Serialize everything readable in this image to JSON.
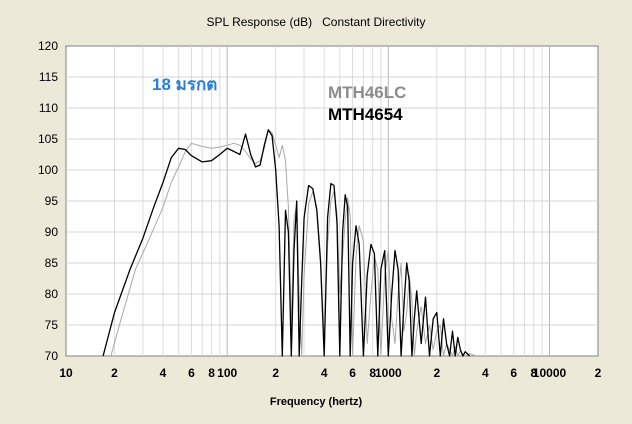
{
  "chart_data": {
    "type": "line",
    "title": "SPL Response (dB)   Constant Directivity",
    "xlabel": "Frequency (hertz)",
    "ylabel": "",
    "x_scale": "log",
    "xlim": [
      10,
      20000
    ],
    "ylim": [
      70,
      120
    ],
    "grid": true,
    "x_ticks": [
      {
        "value": 10,
        "label": "10"
      },
      {
        "value": 20,
        "label": "2"
      },
      {
        "value": 40,
        "label": "4"
      },
      {
        "value": 60,
        "label": "6"
      },
      {
        "value": 80,
        "label": "8"
      },
      {
        "value": 100,
        "label": "100"
      },
      {
        "value": 200,
        "label": "2"
      },
      {
        "value": 400,
        "label": "4"
      },
      {
        "value": 600,
        "label": "6"
      },
      {
        "value": 800,
        "label": "8"
      },
      {
        "value": 1000,
        "label": "1000"
      },
      {
        "value": 2000,
        "label": "2"
      },
      {
        "value": 4000,
        "label": "4"
      },
      {
        "value": 6000,
        "label": "6"
      },
      {
        "value": 8000,
        "label": "8"
      },
      {
        "value": 10000,
        "label": "10000"
      },
      {
        "value": 20000,
        "label": "2"
      }
    ],
    "y_ticks": [
      70,
      75,
      80,
      85,
      90,
      95,
      100,
      105,
      110,
      115,
      120
    ],
    "annotations": [
      {
        "text": "18 มรกต",
        "color": "#2a7fd8"
      },
      {
        "text": "MTH46LC",
        "color": "#8c8c8c"
      },
      {
        "text": "MTH4654",
        "color": "#000000"
      }
    ],
    "series": [
      {
        "name": "MTH4654",
        "color": "#000000",
        "x": [
          17,
          20,
          25,
          30,
          35,
          40,
          45,
          50,
          55,
          60,
          70,
          80,
          90,
          100,
          110,
          120,
          130,
          140,
          150,
          160,
          170,
          180,
          190,
          200,
          210,
          220,
          230,
          240,
          250,
          260,
          270,
          280,
          290,
          300,
          320,
          340,
          360,
          380,
          400,
          420,
          440,
          460,
          480,
          500,
          520,
          540,
          560,
          580,
          600,
          630,
          660,
          700,
          740,
          780,
          820,
          860,
          900,
          950,
          1000,
          1050,
          1100,
          1150,
          1200,
          1250,
          1300,
          1350,
          1400,
          1450,
          1500,
          1600,
          1700,
          1800,
          1900,
          2000,
          2100,
          2200,
          2300,
          2400,
          2500,
          2600,
          2700,
          2800,
          2900,
          3000,
          3200
        ],
        "y": [
          70,
          77,
          84,
          89,
          94,
          98,
          102,
          103.5,
          103.3,
          102.3,
          101.3,
          101.5,
          102.5,
          103.5,
          103,
          102.5,
          105.8,
          102.5,
          100.5,
          100.8,
          104,
          106.5,
          105.5,
          100,
          91,
          70,
          93.5,
          90,
          70,
          87,
          95,
          70,
          82,
          92.3,
          97.5,
          97,
          93.5,
          85,
          70,
          92.3,
          97.8,
          97.5,
          91.5,
          70,
          90,
          96,
          94,
          70,
          85,
          91,
          88,
          70,
          83,
          88,
          86.5,
          70,
          84,
          87,
          70,
          80,
          87,
          84,
          70,
          78,
          85,
          82,
          70,
          76,
          80.5,
          72,
          79.5,
          70,
          76,
          77,
          70,
          76,
          72,
          70,
          74,
          70,
          73,
          71,
          70,
          70.7,
          70
        ]
      },
      {
        "name": "MTH46LC",
        "color": "#a8a8a8",
        "x": [
          19,
          22,
          27,
          33,
          40,
          45,
          50,
          55,
          60,
          70,
          80,
          90,
          100,
          110,
          120,
          130,
          140,
          150,
          160,
          170,
          180,
          190,
          200,
          210,
          220,
          230,
          240,
          250,
          260,
          270,
          280,
          290,
          300,
          320,
          340,
          360,
          380,
          400,
          420,
          440,
          460,
          480,
          500,
          520,
          540,
          560,
          580,
          600,
          630,
          660,
          700,
          740,
          780,
          820,
          860,
          900,
          950,
          1000,
          1050,
          1100,
          1150,
          1200,
          1250,
          1300,
          1350,
          1400,
          1450,
          1500,
          1600,
          1700,
          1800,
          1900,
          2000,
          2100,
          2200,
          2300,
          2400,
          2500,
          2600,
          2700,
          2800,
          2900,
          3000,
          3200,
          3500
        ],
        "y": [
          70,
          76,
          84,
          89,
          94,
          98,
          100.5,
          103,
          104.3,
          103.8,
          103.5,
          103.7,
          104,
          104.3,
          104,
          103,
          101.8,
          101,
          101.5,
          103.5,
          106.5,
          106,
          104,
          102,
          104,
          101.5,
          94,
          75,
          92,
          94.5,
          80,
          70,
          83,
          94.5,
          96.5,
          94,
          86,
          72,
          88,
          95,
          96.5,
          93,
          80,
          86,
          92,
          95.5,
          92.5,
          70,
          86,
          91,
          88.5,
          72,
          80,
          86,
          84,
          70,
          83,
          87,
          76,
          72,
          80,
          85,
          74,
          77,
          83,
          79,
          70,
          74,
          78,
          72,
          75,
          71,
          74,
          75,
          70,
          72,
          71,
          70,
          71.5,
          70,
          70.8,
          70.3,
          70,
          70.4,
          70
        ]
      }
    ]
  }
}
